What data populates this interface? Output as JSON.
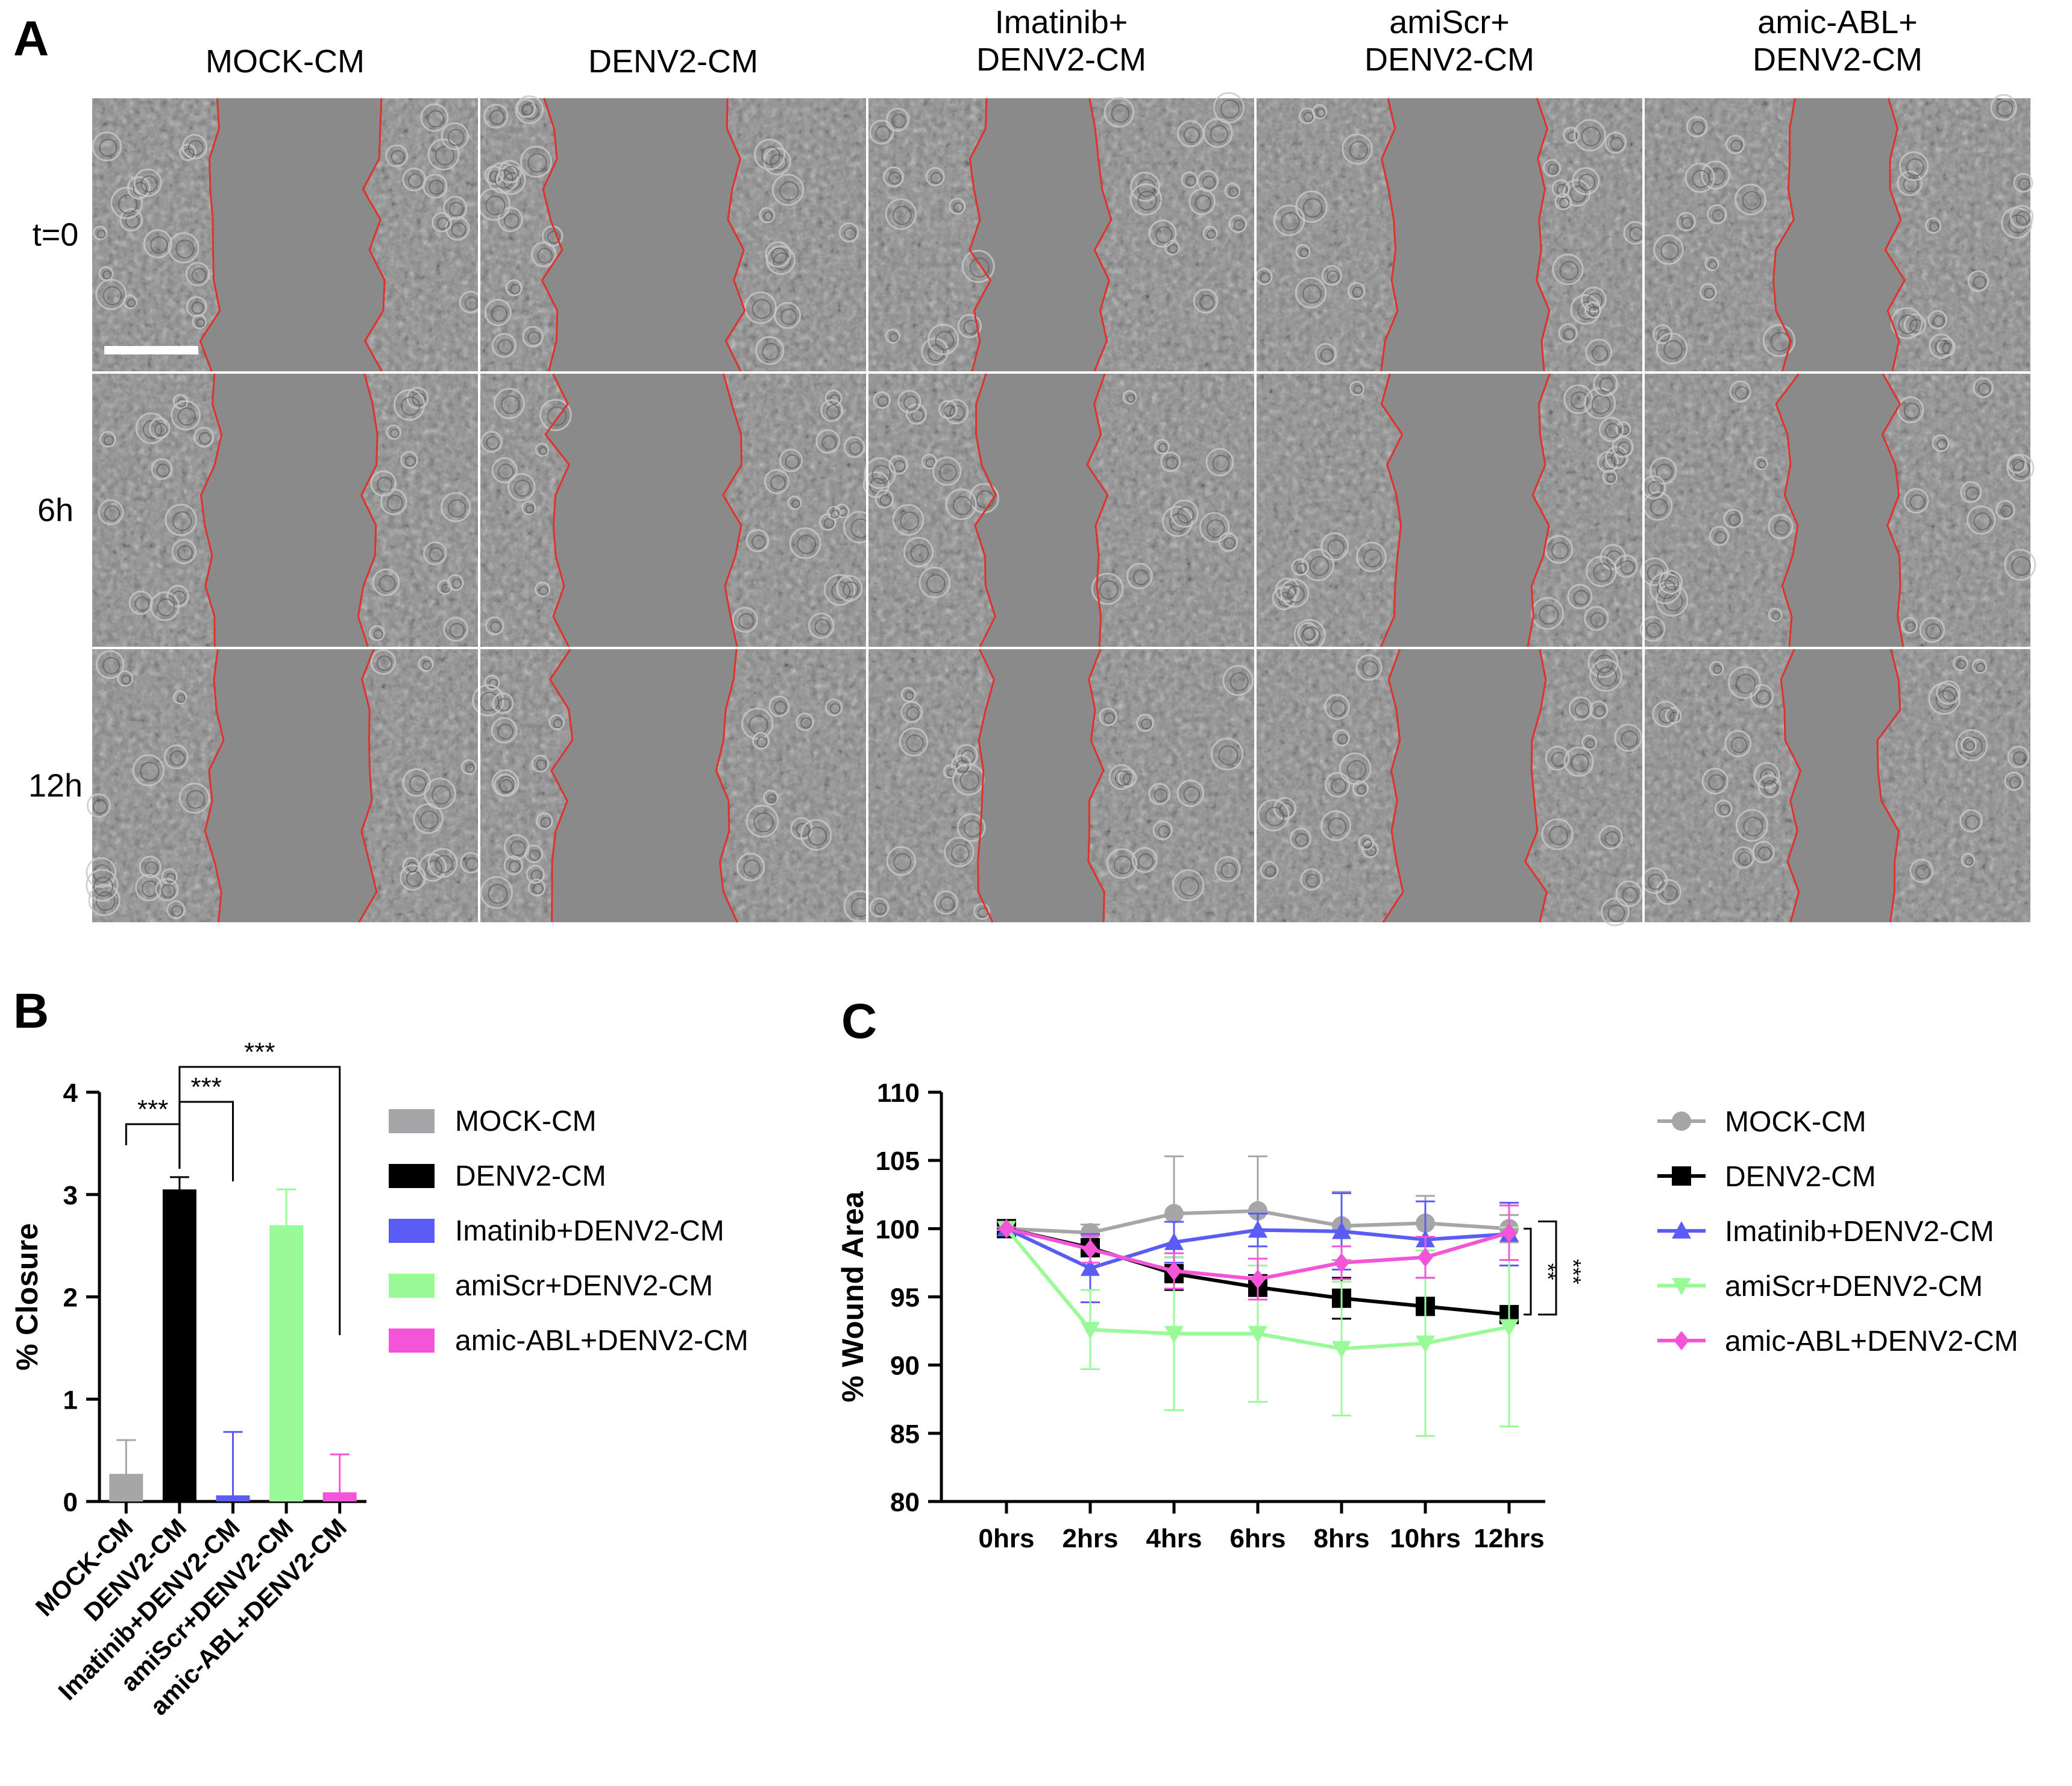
{
  "panel_a": {
    "letter": "A",
    "columns": [
      [
        "MOCK-CM"
      ],
      [
        "DENV2-CM"
      ],
      [
        "Imatinib+",
        "DENV2-CM"
      ],
      [
        "amiScr+",
        "DENV2-CM"
      ],
      [
        "amic-ABL+",
        "DENV2-CM"
      ]
    ],
    "rows": [
      "t=0",
      "6h",
      "12h"
    ],
    "wound_edge_color": "#e0312b",
    "scale_bar_color": "#ffffff"
  },
  "chart_data": [
    {
      "panel": "B",
      "type": "bar",
      "xlabel": "",
      "ylabel": "% Closure",
      "ylim": [
        0,
        4
      ],
      "yticks": [
        "0",
        "1",
        "2",
        "3",
        "4"
      ],
      "categories": [
        "MOCK-CM",
        "DENV2-CM",
        "Imatinib+DENV2-CM",
        "amiScr+DENV2-CM",
        "amic-ABL+DENV2-CM"
      ],
      "values": [
        0.27,
        3.05,
        0.06,
        2.7,
        0.09
      ],
      "errors": [
        0.33,
        0.12,
        0.62,
        0.35,
        0.37
      ],
      "colors": [
        "#a6a6a8",
        "#000000",
        "#5b5bf6",
        "#99fb97",
        "#f455d8"
      ],
      "legend": {
        "position": "right",
        "entries": [
          "MOCK-CM",
          "DENV2-CM",
          "Imatinib+DENV2-CM",
          "amiScr+DENV2-CM",
          "amic-ABL+DENV2-CM"
        ]
      },
      "significance": [
        {
          "from": 0,
          "to": 1,
          "label": "***"
        },
        {
          "from": 1,
          "to": 2,
          "label": "***"
        },
        {
          "from": 1,
          "to": 4,
          "label": "***"
        }
      ]
    },
    {
      "panel": "C",
      "type": "line",
      "xlabel": "",
      "ylabel": "% Wound Area",
      "ylim": [
        80,
        110
      ],
      "yticks": [
        "80",
        "85",
        "90",
        "95",
        "100",
        "105",
        "110"
      ],
      "categories": [
        "0hrs",
        "2hrs",
        "4hrs",
        "6hrs",
        "8hrs",
        "10hrs",
        "12hrs"
      ],
      "series": [
        {
          "name": "MOCK-CM",
          "color": "#a6a6a8",
          "marker": "circle",
          "values": [
            100,
            99.7,
            101.1,
            101.3,
            100.2,
            100.4,
            100.0
          ],
          "errors": [
            0.2,
            0.6,
            4.2,
            4.0,
            2.5,
            2.0,
            1.0
          ]
        },
        {
          "name": "DENV2-CM",
          "color": "#000000",
          "marker": "square",
          "values": [
            100,
            98.6,
            96.7,
            95.7,
            94.9,
            94.3,
            93.7
          ],
          "errors": [
            0.1,
            0.5,
            1.2,
            0.9,
            1.5,
            0.6,
            0.5
          ]
        },
        {
          "name": "Imatinib+DENV2-CM",
          "color": "#5b5bf6",
          "marker": "triangle-up",
          "values": [
            100,
            97.1,
            99.0,
            99.9,
            99.8,
            99.2,
            99.6
          ],
          "errors": [
            0.1,
            2.5,
            1.5,
            1.2,
            2.8,
            2.8,
            2.3
          ]
        },
        {
          "name": "amiScr+DENV2-CM",
          "color": "#99fb97",
          "marker": "triangle-down",
          "values": [
            100,
            92.6,
            92.3,
            92.3,
            91.2,
            91.6,
            92.8
          ],
          "errors": [
            0.1,
            2.9,
            5.6,
            5.0,
            4.9,
            6.8,
            7.3
          ]
        },
        {
          "name": "amic-ABL+DENV2-CM",
          "color": "#f455d8",
          "marker": "diamond",
          "values": [
            100,
            98.5,
            96.9,
            96.3,
            97.5,
            97.9,
            99.7
          ],
          "errors": [
            0.1,
            1.0,
            1.3,
            1.5,
            1.2,
            1.5,
            2.0
          ]
        }
      ],
      "legend": {
        "position": "right",
        "entries": [
          "MOCK-CM",
          "DENV2-CM",
          "Imatinib+DENV2-CM",
          "amiScr+DENV2-CM",
          "amic-ABL+DENV2-CM"
        ]
      },
      "significance": [
        {
          "label": "**"
        },
        {
          "label": "***"
        }
      ]
    }
  ]
}
